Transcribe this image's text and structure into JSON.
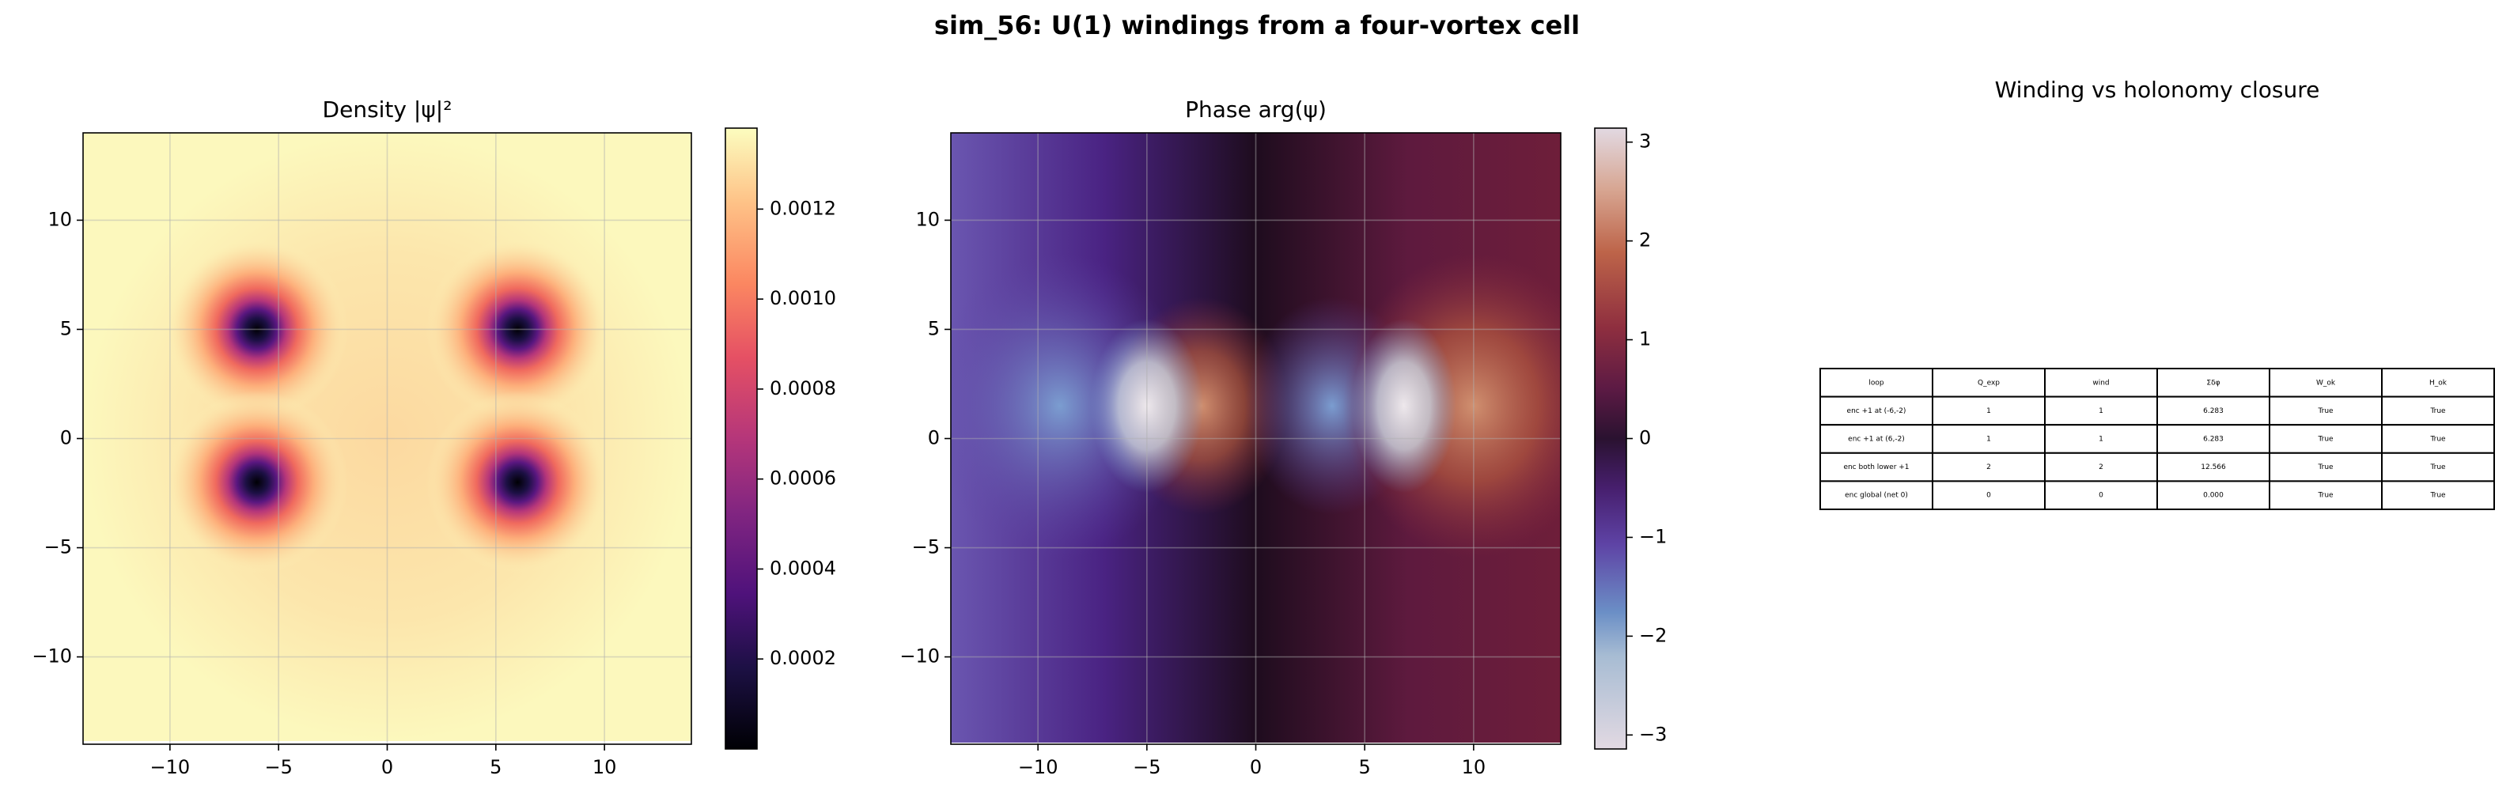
{
  "title": "sim_56: U(1) windings from a four-vortex cell",
  "chart_data": [
    {
      "type": "heatmap",
      "title": "Density |ψ|²",
      "colormap": "magma",
      "grid": true,
      "xlim": [
        -14,
        14
      ],
      "ylim": [
        -14,
        14
      ],
      "xticks": [
        {
          "value": -10,
          "label": "−10"
        },
        {
          "value": -5,
          "label": "−5"
        },
        0,
        5,
        10
      ],
      "yticks": [
        {
          "value": -10,
          "label": "−10"
        },
        {
          "value": -5,
          "label": "−5"
        },
        0,
        5,
        10
      ],
      "colorbar_lim": [
        0,
        0.00138
      ],
      "colorbar_ticks": [
        0.0002,
        0.0004,
        0.0006,
        0.0008,
        {
          "value": 0.001,
          "label": "0.0010"
        },
        0.0012
      ]
    },
    {
      "type": "heatmap",
      "title": "Phase arg(ψ)",
      "colormap": "twilight_shifted",
      "grid": true,
      "xlim": [
        -14,
        14
      ],
      "ylim": [
        -14,
        14
      ],
      "xticks": [
        {
          "value": -10,
          "label": "−10"
        },
        {
          "value": -5,
          "label": "−5"
        },
        0,
        5,
        10
      ],
      "yticks": [
        {
          "value": -10,
          "label": "−10"
        },
        {
          "value": -5,
          "label": "−5"
        },
        0,
        5,
        10
      ],
      "colorbar_lim": [
        -3.1416,
        3.1416
      ],
      "colorbar_ticks": [
        {
          "value": -3,
          "label": "−3"
        },
        {
          "value": -2,
          "label": "−2"
        },
        {
          "value": -1,
          "label": "−1"
        },
        0,
        1,
        2,
        3
      ]
    }
  ],
  "table": {
    "title": "Winding vs holonomy closure",
    "columns": [
      "loop",
      "Q_exp",
      "wind",
      "Σδφ",
      "W_ok",
      "H_ok"
    ],
    "rows": [
      [
        "enc +1 at (-6,-2)",
        "1",
        "1",
        "6.283",
        "True",
        "True"
      ],
      [
        "enc +1 at (6,-2)",
        "1",
        "1",
        "6.283",
        "True",
        "True"
      ],
      [
        "enc both lower +1",
        "2",
        "2",
        "12.566",
        "True",
        "True"
      ],
      [
        "enc global (net 0)",
        "0",
        "0",
        "0.000",
        "True",
        "True"
      ]
    ]
  }
}
